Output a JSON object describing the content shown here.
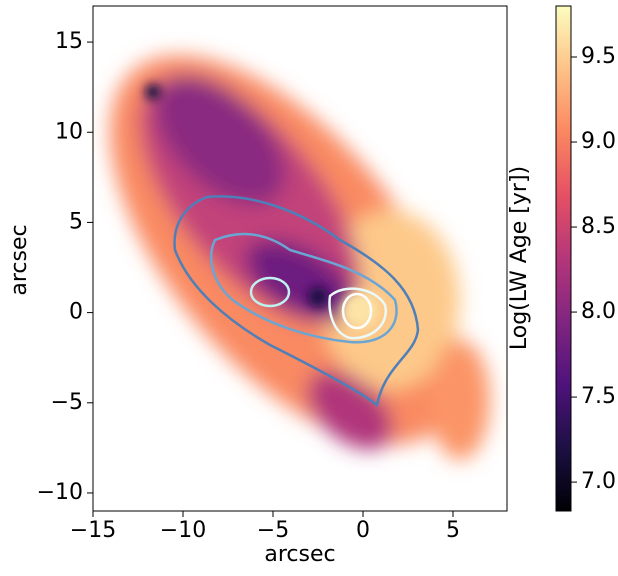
{
  "chart_data": {
    "type": "image",
    "x_label": "arcsec",
    "y_label": "arcsec",
    "xlim": [
      -15,
      8
    ],
    "ylim": [
      -11,
      17
    ],
    "xticks": [
      {
        "value": -15,
        "label": "−15"
      },
      {
        "value": -10,
        "label": "−10"
      },
      {
        "value": -5,
        "label": "−5"
      },
      0,
      5
    ],
    "yticks": [
      {
        "value": -10,
        "label": "−10"
      },
      {
        "value": -5,
        "label": "−5"
      },
      0,
      5,
      10,
      15
    ],
    "colorbar": {
      "label": "Log(LW Age [yr])",
      "lim": [
        6.83,
        9.8
      ],
      "ticks": [
        {
          "value": 7,
          "label": "7.0"
        },
        7.5,
        {
          "value": 8,
          "label": "8.0"
        },
        8.5,
        {
          "value": 9,
          "label": "9.0"
        },
        9.5
      ],
      "colors": [
        "#000004",
        "#1c1044",
        "#4f127b",
        "#812581",
        "#b5367a",
        "#e55064",
        "#fb8761",
        "#fec287",
        "#fcfdbf"
      ]
    }
  }
}
